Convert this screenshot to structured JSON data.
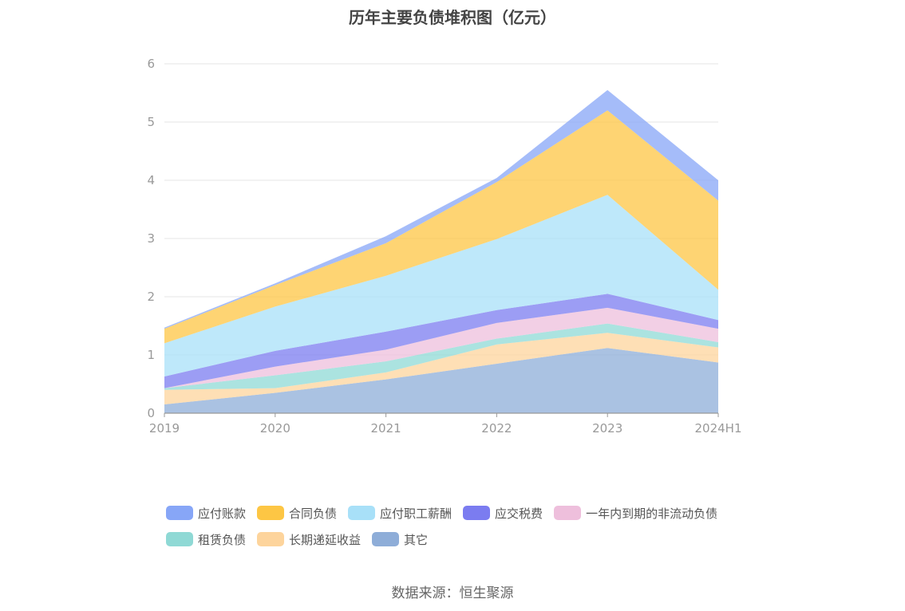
{
  "chart_data": {
    "type": "area",
    "stacked": true,
    "title": "历年主要负债堆积图（亿元）",
    "categories": [
      "2019",
      "2020",
      "2021",
      "2022",
      "2023",
      "2024H1"
    ],
    "ylim": [
      0,
      6
    ],
    "yticks": [
      "0",
      "1",
      "2",
      "3",
      "4",
      "5",
      "6"
    ],
    "grid": true,
    "legend_position": "bottom",
    "series": [
      {
        "name": "其它",
        "color": "#8eadd8",
        "values": [
          0.15,
          0.35,
          0.58,
          0.85,
          1.12,
          0.87
        ]
      },
      {
        "name": "长期递延收益",
        "color": "#fdd49c",
        "values": [
          0.25,
          0.08,
          0.12,
          0.33,
          0.26,
          0.26
        ]
      },
      {
        "name": "租赁负债",
        "color": "#8fd9d5",
        "values": [
          0.03,
          0.22,
          0.19,
          0.1,
          0.16,
          0.09
        ]
      },
      {
        "name": "一年内到期的非流动负债",
        "color": "#eebfdc",
        "values": [
          0.0,
          0.15,
          0.2,
          0.27,
          0.27,
          0.23
        ]
      },
      {
        "name": "应交税费",
        "color": "#7b7cf0",
        "values": [
          0.2,
          0.27,
          0.31,
          0.22,
          0.24,
          0.15
        ]
      },
      {
        "name": "应付职工薪酬",
        "color": "#a8e0f8",
        "values": [
          0.57,
          0.76,
          0.96,
          1.22,
          1.7,
          0.52
        ]
      },
      {
        "name": "合同负债",
        "color": "#fdc644",
        "values": [
          0.25,
          0.37,
          0.56,
          0.98,
          1.45,
          1.53
        ]
      },
      {
        "name": "应付账款",
        "color": "#87a6f7",
        "values": [
          0.02,
          0.03,
          0.12,
          0.07,
          0.35,
          0.35
        ]
      }
    ],
    "legend_order": [
      "应付账款",
      "合同负债",
      "应付职工薪酬",
      "应交税费",
      "一年内到期的非流动负债",
      "租赁负债",
      "长期递延收益",
      "其它"
    ]
  },
  "source": "数据来源：恒生聚源"
}
